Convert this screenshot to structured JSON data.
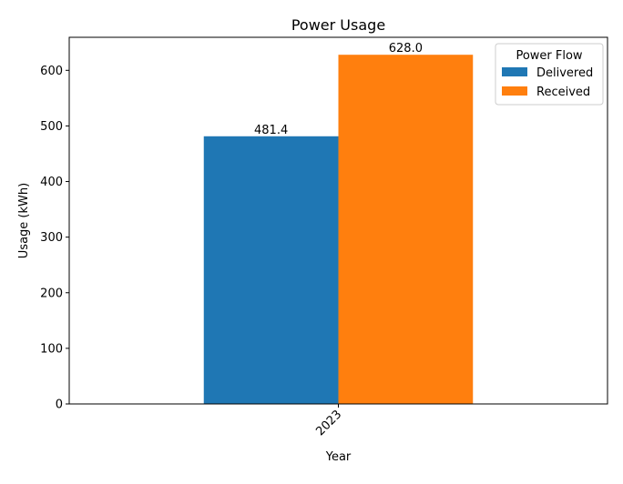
{
  "chart_data": {
    "type": "bar",
    "title": "Power Usage",
    "xlabel": "Year",
    "ylabel": "Usage (kWh)",
    "categories": [
      "2023"
    ],
    "series": [
      {
        "name": "Delivered",
        "values": [
          481.4
        ],
        "color": "#1f77b4",
        "labels": [
          "481.4"
        ]
      },
      {
        "name": "Received",
        "values": [
          628.0
        ],
        "color": "#ff7f0e",
        "labels": [
          "628.0"
        ]
      }
    ],
    "ylim": [
      0,
      659.4
    ],
    "yticks": [
      0,
      100,
      200,
      300,
      400,
      500,
      600
    ],
    "ytick_labels": [
      "0",
      "100",
      "200",
      "300",
      "400",
      "500",
      "600"
    ],
    "xtick_rotation": 45,
    "grid": false,
    "legend": {
      "title": "Power Flow",
      "position": "top-right"
    }
  }
}
